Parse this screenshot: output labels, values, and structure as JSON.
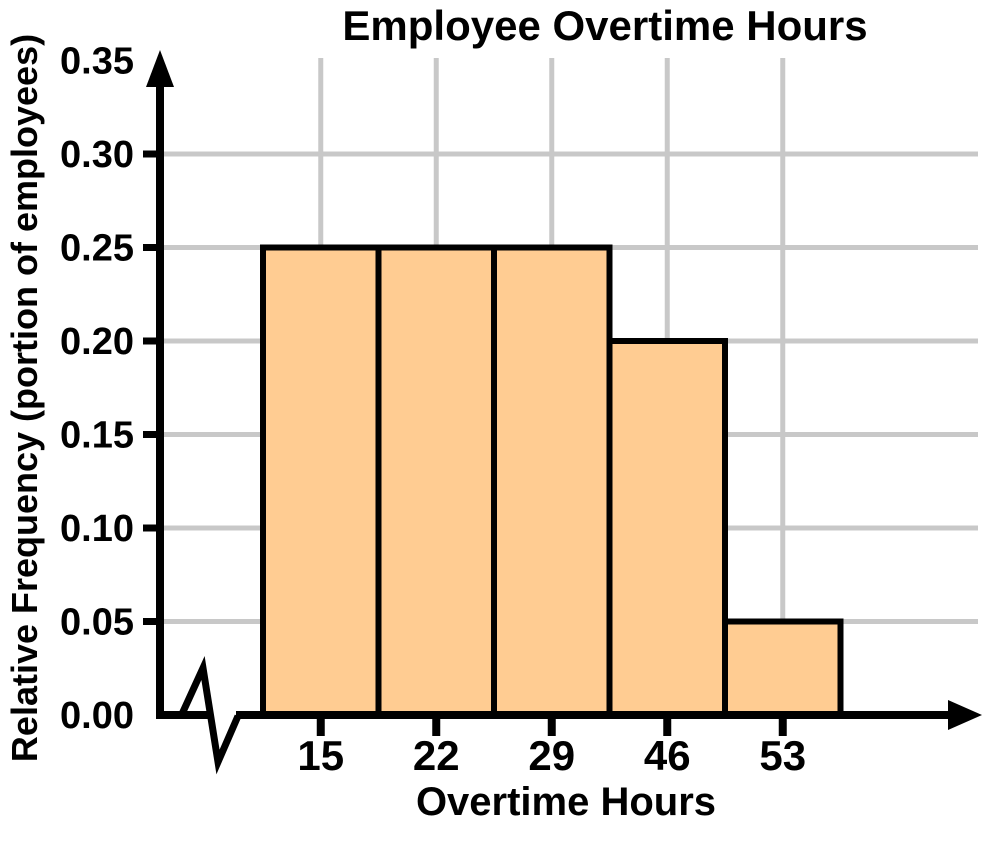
{
  "chart_data": {
    "type": "bar",
    "subtype": "histogram",
    "title": "Employee Overtime Hours",
    "xlabel": "Overtime Hours",
    "ylabel": "Relative Frequency (portion of employees)",
    "categories": [
      "15",
      "22",
      "29",
      "46",
      "53"
    ],
    "values": [
      0.25,
      0.25,
      0.25,
      0.2,
      0.05
    ],
    "series": [
      {
        "name": "Relative Frequency",
        "values": [
          0.25,
          0.25,
          0.25,
          0.2,
          0.05
        ]
      }
    ],
    "y_ticks": [
      0.0,
      0.05,
      0.1,
      0.15,
      0.2,
      0.25,
      0.3,
      0.35
    ],
    "y_tick_labels": [
      "0.00",
      "0.05",
      "0.10",
      "0.15",
      "0.20",
      "0.25",
      "0.30",
      "0.35"
    ],
    "ylim": [
      0,
      0.35
    ],
    "grid": "on",
    "legend": "none",
    "bars_touch": true,
    "x_axis_break": true,
    "colors": {
      "bar_fill": "#FFCC92",
      "bar_border": "#000000",
      "grid": "#C8C8C8",
      "axis": "#000000",
      "text": "#000000",
      "background": "#FFFFFF"
    }
  }
}
